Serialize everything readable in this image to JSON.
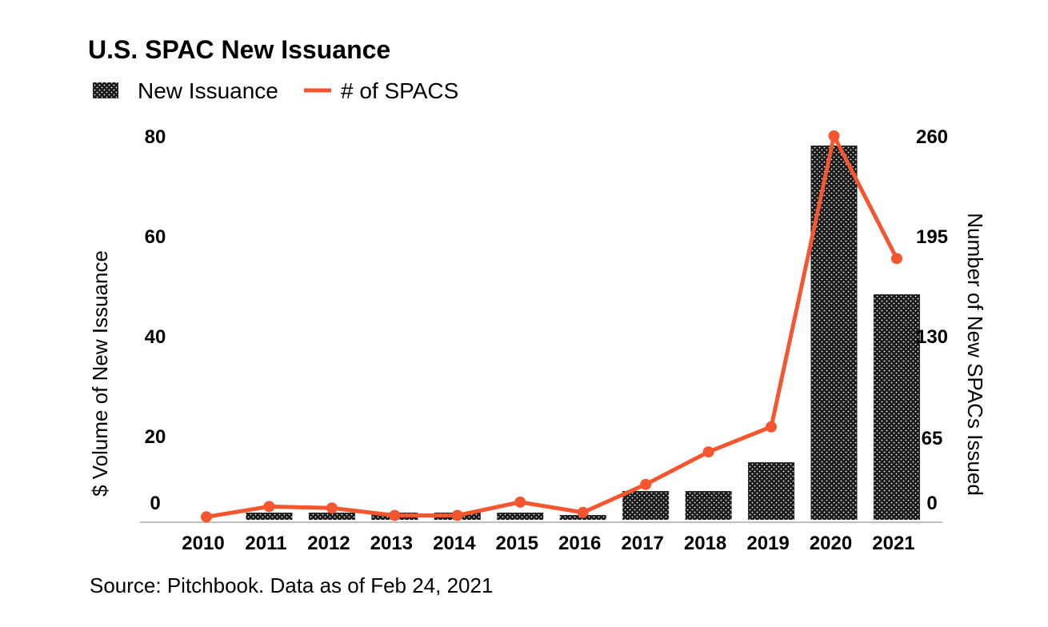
{
  "chart_data": {
    "type": "bar+line",
    "title": "U.S. SPAC New Issuance",
    "categories": [
      "2010",
      "2011",
      "2012",
      "2013",
      "2014",
      "2015",
      "2016",
      "2017",
      "2018",
      "2019",
      "2020",
      "2021"
    ],
    "series": [
      {
        "name": "New Issuance",
        "kind": "bar",
        "axis": "left",
        "values": [
          0,
          1.5,
          1.5,
          1.5,
          1.5,
          1.5,
          1.0,
          6,
          6,
          12,
          78,
          47
        ]
      },
      {
        "name": "# of SPACS",
        "kind": "line",
        "axis": "right",
        "values": [
          2,
          9,
          8,
          3,
          3,
          12,
          5,
          24,
          46,
          63,
          260,
          177
        ]
      }
    ],
    "ylabel_left": "$ Volume of New Issuance",
    "ylabel_right": "Number of New SPACs Issued",
    "ylim_left": [
      0,
      80
    ],
    "ylim_right": [
      0,
      260
    ],
    "yticks_left": [
      "0",
      "20",
      "40",
      "60",
      "80"
    ],
    "yticks_right": [
      "0",
      "65",
      "130",
      "195",
      "260"
    ],
    "legend_placement": "top-left",
    "source": "Source: Pitchbook. Data as of Feb 24, 2021"
  },
  "colors": {
    "bar": "#111111",
    "line": "#f4562f",
    "axis": "#bfbfbf"
  }
}
